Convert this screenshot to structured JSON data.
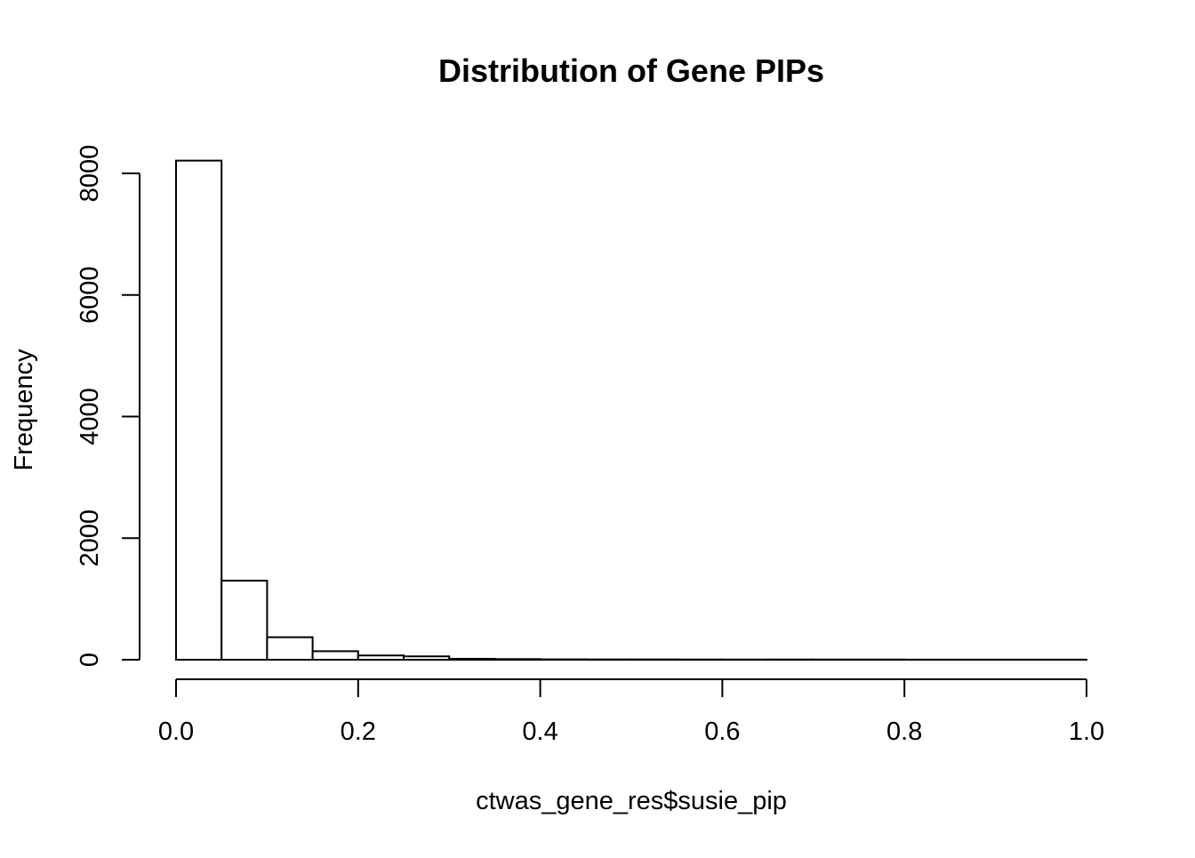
{
  "chart_data": {
    "type": "bar",
    "title": "Distribution of Gene PIPs",
    "xlabel": "ctwas_gene_res$susie_pip",
    "ylabel": "Frequency",
    "xlim": [
      0,
      1
    ],
    "ylim": [
      0,
      8000
    ],
    "x_ticks": [
      0,
      0.2,
      0.4,
      0.6,
      0.8,
      1.0
    ],
    "x_tick_labels": [
      "0.0",
      "0.2",
      "0.4",
      "0.6",
      "0.8",
      "1.0"
    ],
    "y_ticks": [
      0,
      2000,
      4000,
      6000,
      8000
    ],
    "y_tick_labels": [
      "0",
      "2000",
      "4000",
      "6000",
      "8000"
    ],
    "bin_width": 0.05,
    "bin_starts": [
      0.0,
      0.05,
      0.1,
      0.15,
      0.2,
      0.25,
      0.3,
      0.35,
      0.4,
      0.45,
      0.5,
      0.55,
      0.6,
      0.65,
      0.7,
      0.75,
      0.8,
      0.85,
      0.9,
      0.95
    ],
    "values": [
      8210,
      1300,
      370,
      140,
      70,
      55,
      15,
      10,
      6,
      5,
      5,
      4,
      3,
      4,
      3,
      3,
      2,
      2,
      2,
      2
    ],
    "grid": false,
    "legend": "none"
  }
}
